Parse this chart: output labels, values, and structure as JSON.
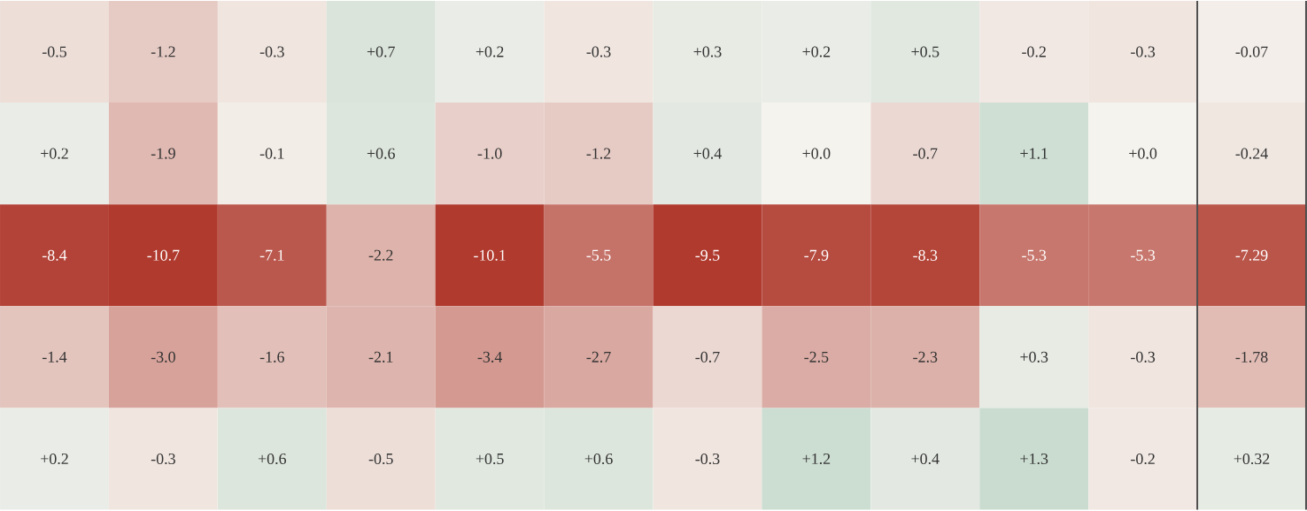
{
  "chart_data": {
    "type": "heatmap",
    "categories": [
      null,
      null,
      null,
      null,
      null,
      null,
      null,
      null,
      null,
      null,
      null,
      null
    ],
    "y_categories": [
      null,
      null,
      null,
      null,
      null
    ],
    "cells": [
      [
        -0.5,
        -1.2,
        -0.3,
        0.7,
        0.2,
        -0.3,
        0.3,
        0.2,
        0.5,
        -0.2,
        -0.3,
        -0.07
      ],
      [
        0.2,
        -1.9,
        -0.1,
        0.6,
        -1.0,
        -1.2,
        0.4,
        0.0,
        -0.7,
        1.1,
        0.0,
        -0.24
      ],
      [
        -8.4,
        -10.7,
        -7.1,
        -2.2,
        -10.1,
        -5.5,
        -9.5,
        -7.9,
        -8.3,
        -5.3,
        -5.3,
        -7.29
      ],
      [
        -1.4,
        -3.0,
        -1.6,
        -2.1,
        -3.4,
        -2.7,
        -0.7,
        -2.5,
        -2.3,
        0.3,
        -0.3,
        -1.78
      ],
      [
        0.2,
        -0.3,
        0.6,
        -0.5,
        0.5,
        0.6,
        -0.3,
        1.2,
        0.4,
        1.3,
        -0.2,
        0.32
      ]
    ],
    "cell_labels": [
      [
        "-0.5",
        "-1.2",
        "-0.3",
        "+0.7",
        "+0.2",
        "-0.3",
        "+0.3",
        "+0.2",
        "+0.5",
        "-0.2",
        "-0.3",
        "-0.07"
      ],
      [
        "+0.2",
        "-1.9",
        "-0.1",
        "+0.6",
        "-1.0",
        "-1.2",
        "+0.4",
        "+0.0",
        "-0.7",
        "+1.1",
        "+0.0",
        "-0.24"
      ],
      [
        "-8.4",
        "-10.7",
        "-7.1",
        "-2.2",
        "-10.1",
        "-5.5",
        "-9.5",
        "-7.9",
        "-8.3",
        "-5.3",
        "-5.3",
        "-7.29"
      ],
      [
        "-1.4",
        "-3.0",
        "-1.6",
        "-2.1",
        "-3.4",
        "-2.7",
        "-0.7",
        "-2.5",
        "-2.3",
        "+0.3",
        "-0.3",
        "-1.78"
      ],
      [
        "+0.2",
        "-0.3",
        "+0.6",
        "-0.5",
        "+0.5",
        "+0.6",
        "-0.3",
        "+1.2",
        "+0.4",
        "+1.3",
        "-0.2",
        "+0.32"
      ]
    ]
  }
}
